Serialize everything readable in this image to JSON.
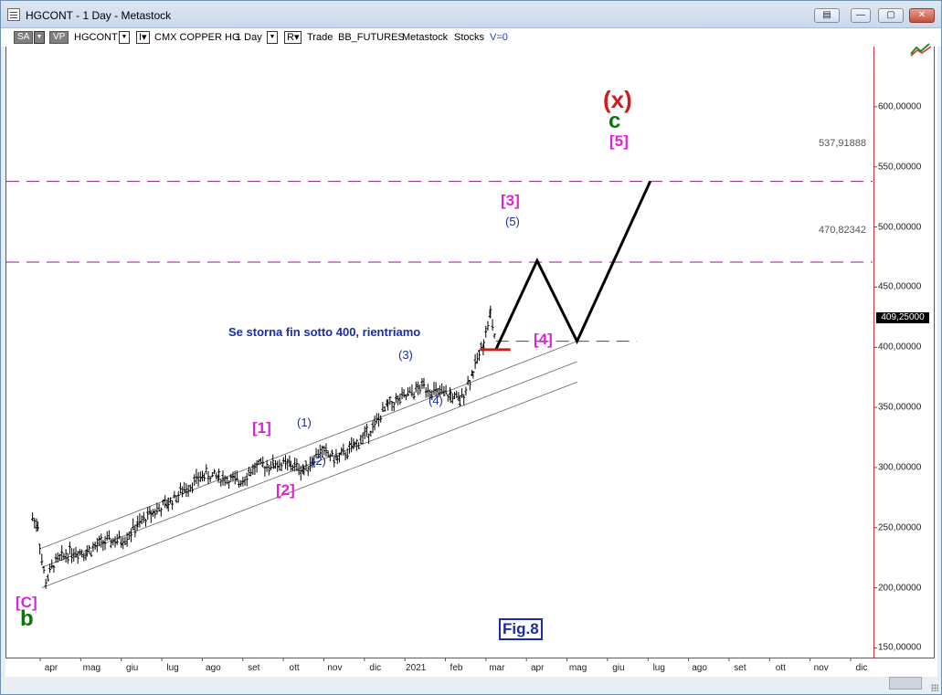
{
  "window": {
    "title": "HGCONT - 1 Day - Metastock"
  },
  "toolbar": {
    "sa_label": "SA",
    "vp_label": "VP",
    "symbol": "HGCONT",
    "drop_arrow": "▼",
    "i_label": "I▾",
    "security_name": "CMX COPPER HG",
    "period": "1 Day",
    "r_label": "R▾",
    "mode": "Trade",
    "source": "BB_FUTURES",
    "app": "Metastock",
    "type": "Stocks",
    "v_label": "V=0"
  },
  "window_buttons": [
    "▤",
    "—",
    "▢",
    "✕"
  ],
  "chart_data": {
    "type": "line",
    "title": "",
    "x_labels": [
      "apr",
      "mag",
      "giu",
      "lug",
      "ago",
      "set",
      "ott",
      "nov",
      "dic",
      "2021",
      "feb",
      "mar",
      "apr",
      "mag",
      "giu",
      "lug",
      "ago",
      "set",
      "ott",
      "nov",
      "dic"
    ],
    "y_ticks": [
      "600,00000",
      "550,00000",
      "500,00000",
      "450,00000",
      "400,00000",
      "350,00000",
      "300,00000",
      "250,00000",
      "200,00000",
      "150,00000"
    ],
    "ylim": [
      142,
      650
    ],
    "last_price_label": "409,25000",
    "horizontal_levels": [
      {
        "value": 537.91888,
        "label": "537,91888",
        "color": "#8b1a8b"
      },
      {
        "value": 470.82342,
        "label": "470,82342",
        "color": "#8b1a8b"
      },
      {
        "value": 405,
        "label": "",
        "color": "#8b1a8b"
      }
    ],
    "stop_line_value": 398,
    "projection_path": [
      {
        "x": "2021-03-01",
        "y": 398
      },
      {
        "x": "2021-04-01",
        "y": 472
      },
      {
        "x": "2021-05-01",
        "y": 405
      },
      {
        "x": "2021-06-25",
        "y": 538
      }
    ],
    "series": [
      {
        "type": "ohlc",
        "points": [
          {
            "x": "2020-03-18",
            "y": 258
          },
          {
            "x": "2020-03-22",
            "y": 252
          },
          {
            "x": "2020-03-25",
            "y": 222
          },
          {
            "x": "2020-03-28",
            "y": 205
          },
          {
            "x": "2020-04-03",
            "y": 220
          },
          {
            "x": "2020-04-15",
            "y": 230
          },
          {
            "x": "2020-04-28",
            "y": 230
          },
          {
            "x": "2020-05-10",
            "y": 238
          },
          {
            "x": "2020-05-25",
            "y": 240
          },
          {
            "x": "2020-06-05",
            "y": 252
          },
          {
            "x": "2020-06-15",
            "y": 262
          },
          {
            "x": "2020-06-28",
            "y": 270
          },
          {
            "x": "2020-07-10",
            "y": 282
          },
          {
            "x": "2020-07-25",
            "y": 294
          },
          {
            "x": "2020-08-05",
            "y": 292
          },
          {
            "x": "2020-08-20",
            "y": 288
          },
          {
            "x": "2020-09-01",
            "y": 300
          },
          {
            "x": "2020-09-15",
            "y": 303
          },
          {
            "x": "2020-09-28",
            "y": 302
          },
          {
            "x": "2020-10-08",
            "y": 298
          },
          {
            "x": "2020-10-20",
            "y": 314
          },
          {
            "x": "2020-11-02",
            "y": 307
          },
          {
            "x": "2020-11-15",
            "y": 318
          },
          {
            "x": "2020-11-30",
            "y": 335
          },
          {
            "x": "2020-12-10",
            "y": 352
          },
          {
            "x": "2020-12-22",
            "y": 358
          },
          {
            "x": "2021-01-06",
            "y": 368
          },
          {
            "x": "2021-01-15",
            "y": 362
          },
          {
            "x": "2021-01-26",
            "y": 360
          },
          {
            "x": "2021-02-02",
            "y": 355
          },
          {
            "x": "2021-02-12",
            "y": 380
          },
          {
            "x": "2021-02-20",
            "y": 405
          },
          {
            "x": "2021-02-25",
            "y": 428
          },
          {
            "x": "2021-02-28",
            "y": 410
          },
          {
            "x": "2021-03-01",
            "y": 398
          }
        ]
      }
    ],
    "channel": [
      {
        "from": {
          "x": "2020-03-25",
          "y": 233
        },
        "to": {
          "x": "2021-05-01",
          "y": 405
        }
      },
      {
        "from": {
          "x": "2020-03-25",
          "y": 217
        },
        "to": {
          "x": "2021-05-01",
          "y": 388
        }
      },
      {
        "from": {
          "x": "2020-03-25",
          "y": 200
        },
        "to": {
          "x": "2021-05-01",
          "y": 371
        }
      }
    ]
  },
  "annotations": {
    "note": "Se storna fin sotto 400, rientriamo",
    "fig": "Fig.8",
    "wave_labels": [
      {
        "text": "[C]",
        "style": "magenta"
      },
      {
        "text": "b",
        "style": "green"
      },
      {
        "text": "[1]",
        "style": "magenta"
      },
      {
        "text": "[2]",
        "style": "magenta"
      },
      {
        "text": "(1)",
        "style": "blue"
      },
      {
        "text": "(2)",
        "style": "blue"
      },
      {
        "text": "(3)",
        "style": "blue"
      },
      {
        "text": "(4)",
        "style": "blue"
      },
      {
        "text": "(5)",
        "style": "blue"
      },
      {
        "text": "[3]",
        "style": "magenta"
      },
      {
        "text": "[4]",
        "style": "magenta"
      },
      {
        "text": "[5]",
        "style": "magenta"
      },
      {
        "text": "c",
        "style": "green"
      },
      {
        "text": "(x)",
        "style": "red"
      }
    ]
  },
  "colors": {
    "axis_separator": "#cc3333",
    "level_line": "#8b1a8b",
    "projection": "#000000",
    "stop_line": "#d11a1a",
    "channel": "#666666"
  }
}
